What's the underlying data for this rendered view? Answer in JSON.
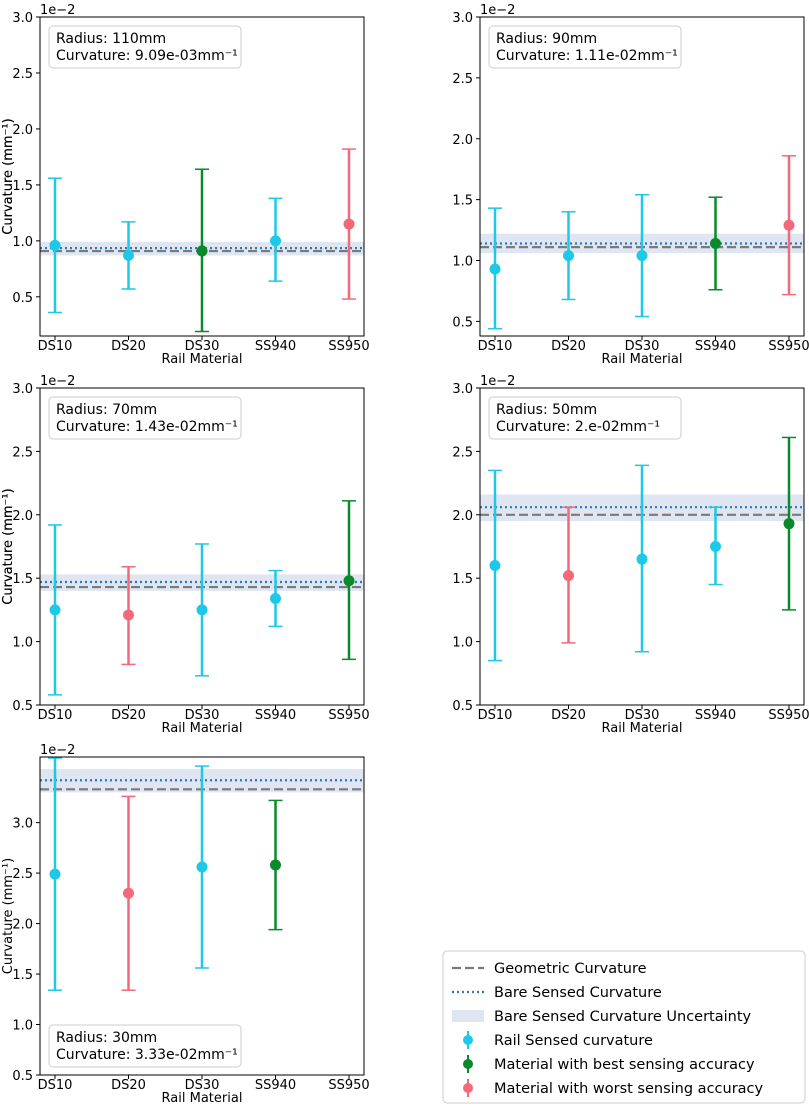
{
  "chart_data": [
    {
      "type": "errorbar",
      "title": "",
      "xlabel": "Rail Material",
      "ylabel": "Curvature (mm⁻¹)",
      "axis_offset_label": "1e−2",
      "categories": [
        "DS10",
        "DS20",
        "DS30",
        "SS940",
        "SS950"
      ],
      "ylim": [
        0.15,
        3.0
      ],
      "yticks": [
        0.5,
        1.0,
        1.5,
        2.0,
        2.5,
        3.0
      ],
      "ytick_labels": [
        "0.5",
        "1.0",
        "1.5",
        "2.0",
        "2.5",
        "3.0"
      ],
      "annotation": [
        "Radius: 110mm",
        "Curvature: 9.09e-03mm⁻¹"
      ],
      "annotation_position": "top-left",
      "geometric_curvature": 0.909,
      "bare_sensed_curvature": 0.935,
      "bare_uncertainty": [
        0.87,
        0.99
      ],
      "points": [
        {
          "category": "DS10",
          "y": 0.96,
          "lower": 0.36,
          "upper": 1.56,
          "role": "rail"
        },
        {
          "category": "DS20",
          "y": 0.87,
          "lower": 0.57,
          "upper": 1.17,
          "role": "rail"
        },
        {
          "category": "DS30",
          "y": 0.91,
          "lower": 0.19,
          "upper": 1.64,
          "role": "best"
        },
        {
          "category": "SS940",
          "y": 1.0,
          "lower": 0.64,
          "upper": 1.38,
          "role": "rail"
        },
        {
          "category": "SS950",
          "y": 1.15,
          "lower": 0.48,
          "upper": 1.82,
          "role": "worst"
        }
      ]
    },
    {
      "type": "errorbar",
      "title": "",
      "xlabel": "Rail Material",
      "ylabel": "Curvature (mm⁻¹)",
      "axis_offset_label": "1e−2",
      "categories": [
        "DS10",
        "DS20",
        "DS30",
        "SS940",
        "SS950"
      ],
      "ylim": [
        0.38,
        3.0
      ],
      "yticks": [
        0.5,
        1.0,
        1.5,
        2.0,
        2.5,
        3.0
      ],
      "ytick_labels": [
        "0.5",
        "1.0",
        "1.5",
        "2.0",
        "2.5",
        "3.0"
      ],
      "annotation": [
        "Radius: 90mm",
        "Curvature: 1.11e-02mm⁻¹"
      ],
      "annotation_position": "top-left",
      "geometric_curvature": 1.11,
      "bare_sensed_curvature": 1.14,
      "bare_uncertainty": [
        1.06,
        1.22
      ],
      "points": [
        {
          "category": "DS10",
          "y": 0.93,
          "lower": 0.44,
          "upper": 1.43,
          "role": "rail"
        },
        {
          "category": "DS20",
          "y": 1.04,
          "lower": 0.68,
          "upper": 1.4,
          "role": "rail"
        },
        {
          "category": "DS30",
          "y": 1.04,
          "lower": 0.54,
          "upper": 1.54,
          "role": "rail"
        },
        {
          "category": "SS940",
          "y": 1.14,
          "lower": 0.76,
          "upper": 1.52,
          "role": "best"
        },
        {
          "category": "SS950",
          "y": 1.29,
          "lower": 0.72,
          "upper": 1.86,
          "role": "worst"
        }
      ]
    },
    {
      "type": "errorbar",
      "title": "",
      "xlabel": "Rail Material",
      "ylabel": "Curvature (mm⁻¹)",
      "axis_offset_label": "1e−2",
      "categories": [
        "DS10",
        "DS20",
        "DS30",
        "SS940",
        "SS950"
      ],
      "ylim": [
        0.5,
        3.0
      ],
      "yticks": [
        0.5,
        1.0,
        1.5,
        2.0,
        2.5,
        3.0
      ],
      "ytick_labels": [
        "0.5",
        "1.0",
        "1.5",
        "2.0",
        "2.5",
        "3.0"
      ],
      "annotation": [
        "Radius: 70mm",
        "Curvature: 1.43e-02mm⁻¹"
      ],
      "annotation_position": "top-left",
      "geometric_curvature": 1.43,
      "bare_sensed_curvature": 1.47,
      "bare_uncertainty": [
        1.4,
        1.53
      ],
      "points": [
        {
          "category": "DS10",
          "y": 1.25,
          "lower": 0.58,
          "upper": 1.92,
          "role": "rail"
        },
        {
          "category": "DS20",
          "y": 1.21,
          "lower": 0.82,
          "upper": 1.59,
          "role": "worst"
        },
        {
          "category": "DS30",
          "y": 1.25,
          "lower": 0.73,
          "upper": 1.77,
          "role": "rail"
        },
        {
          "category": "SS940",
          "y": 1.34,
          "lower": 1.12,
          "upper": 1.56,
          "role": "rail"
        },
        {
          "category": "SS950",
          "y": 1.48,
          "lower": 0.86,
          "upper": 2.11,
          "role": "best"
        }
      ]
    },
    {
      "type": "errorbar",
      "title": "",
      "xlabel": "Rail Material",
      "ylabel": "Curvature (mm⁻¹)",
      "axis_offset_label": "1e−2",
      "categories": [
        "DS10",
        "DS20",
        "DS30",
        "SS940",
        "SS950"
      ],
      "ylim": [
        0.5,
        3.0
      ],
      "yticks": [
        0.5,
        1.0,
        1.5,
        2.0,
        2.5,
        3.0
      ],
      "ytick_labels": [
        "0.5",
        "1.0",
        "1.5",
        "2.0",
        "2.5",
        "3.0"
      ],
      "annotation": [
        "Radius: 50mm",
        "Curvature: 2.e-02mm⁻¹"
      ],
      "annotation_position": "top-left",
      "geometric_curvature": 2.0,
      "bare_sensed_curvature": 2.06,
      "bare_uncertainty": [
        1.95,
        2.16
      ],
      "points": [
        {
          "category": "DS10",
          "y": 1.6,
          "lower": 0.85,
          "upper": 2.35,
          "role": "rail"
        },
        {
          "category": "DS20",
          "y": 1.52,
          "lower": 0.99,
          "upper": 2.06,
          "role": "worst"
        },
        {
          "category": "DS30",
          "y": 1.65,
          "lower": 0.92,
          "upper": 2.39,
          "role": "rail"
        },
        {
          "category": "SS940",
          "y": 1.75,
          "lower": 1.45,
          "upper": 2.06,
          "role": "rail"
        },
        {
          "category": "SS950",
          "y": 1.93,
          "lower": 1.25,
          "upper": 2.61,
          "role": "best"
        }
      ]
    },
    {
      "type": "errorbar",
      "title": "",
      "xlabel": "Rail Material",
      "ylabel": "Curvature (mm⁻¹)",
      "axis_offset_label": "1e−2",
      "categories": [
        "DS10",
        "DS20",
        "DS30",
        "SS940",
        "SS950"
      ],
      "ylim": [
        0.5,
        3.65
      ],
      "yticks": [
        0.5,
        1.0,
        1.5,
        2.0,
        2.5,
        3.0
      ],
      "ytick_labels": [
        "0.5",
        "1.0",
        "1.5",
        "2.0",
        "2.5",
        "3.0"
      ],
      "annotation": [
        "Radius: 30mm",
        "Curvature: 3.33e-02mm⁻¹"
      ],
      "annotation_position": "bottom-left",
      "geometric_curvature": 3.33,
      "bare_sensed_curvature": 3.42,
      "bare_uncertainty": [
        3.3,
        3.53
      ],
      "points": [
        {
          "category": "DS10",
          "y": 2.49,
          "lower": 1.34,
          "upper": 3.64,
          "role": "rail"
        },
        {
          "category": "DS20",
          "y": 2.3,
          "lower": 1.34,
          "upper": 3.26,
          "role": "worst"
        },
        {
          "category": "DS30",
          "y": 2.56,
          "lower": 1.56,
          "upper": 3.56,
          "role": "rail"
        },
        {
          "category": "SS940",
          "y": 2.58,
          "lower": 1.94,
          "upper": 3.22,
          "role": "best"
        }
      ]
    }
  ],
  "legend": {
    "items": [
      {
        "label": "Geometric Curvature",
        "symbol": "dashed-line"
      },
      {
        "label": "Bare Sensed Curvature",
        "symbol": "dotted-line"
      },
      {
        "label": "Bare Sensed Curvature Uncertainty",
        "symbol": "band"
      },
      {
        "label": "Rail Sensed curvature",
        "symbol": "errorbar",
        "role": "rail"
      },
      {
        "label": "Material with best sensing accuracy",
        "symbol": "errorbar",
        "role": "best"
      },
      {
        "label": "Material with worst sensing accuracy",
        "symbol": "errorbar",
        "role": "worst"
      }
    ]
  },
  "colors": {
    "rail": "#1ec8e8",
    "best": "#0a8a2a",
    "worst": "#f4687a",
    "geometric": "#7a7a7a",
    "bare": "#2a7ab8",
    "band": "#dfe5f1",
    "axis": "#000000",
    "box_edge": "#cccccc"
  }
}
